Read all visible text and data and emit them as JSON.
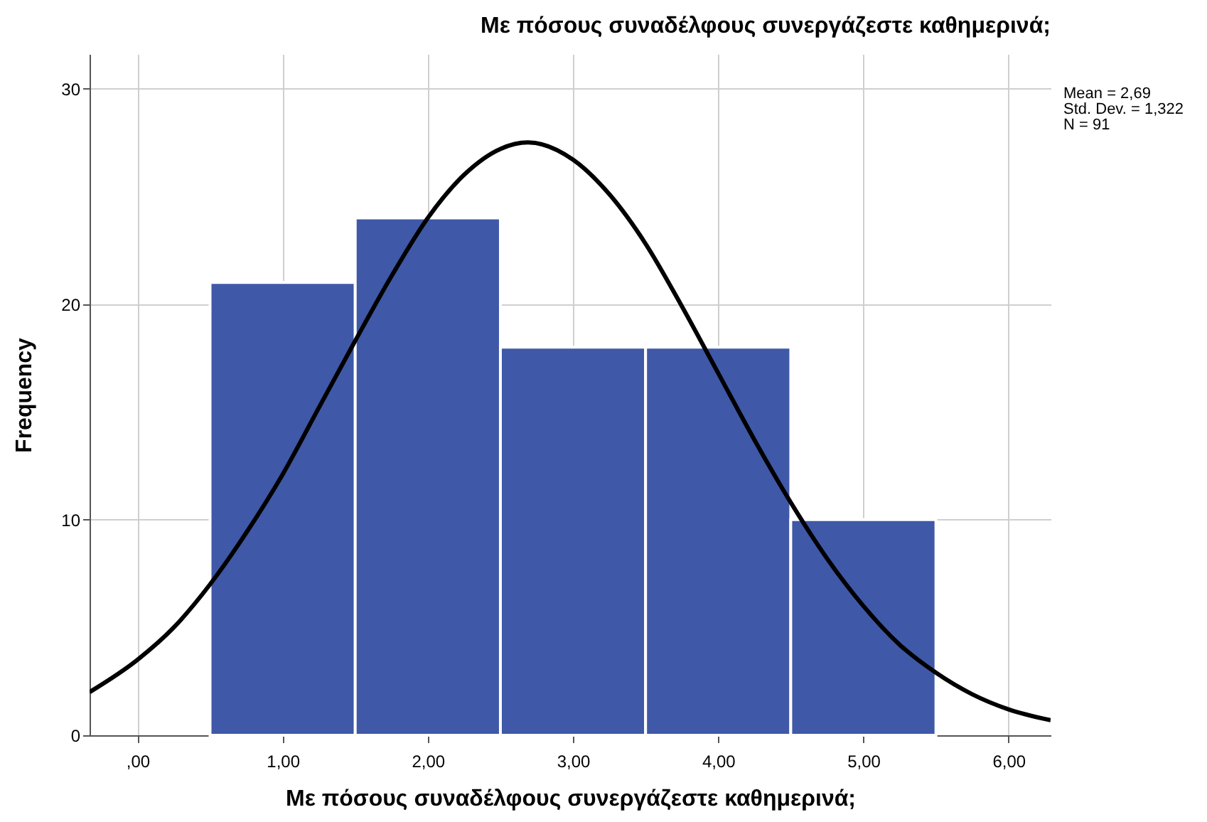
{
  "chart_data": {
    "type": "histogram",
    "title": "Με πόσους συναδέλφους συνεργάζεστε καθημερινά;",
    "xlabel": "Με πόσους συναδέλφους συνεργάζεστε καθημερινά;",
    "ylabel": "Frequency",
    "annotations": [
      "Mean = 2,69",
      "Std. Dev. = 1,322",
      "N = 91"
    ],
    "series": [
      {
        "color": "#3f58a7",
        "bins": [
          0.5,
          1.5,
          2.5,
          3.5,
          4.5,
          5.5
        ],
        "values": [
          21,
          24,
          18,
          18,
          10
        ]
      },
      {
        "type": "line",
        "color": "#000000",
        "x": [
          -0.33,
          0,
          0.25,
          0.5,
          0.75,
          1,
          1.25,
          1.5,
          1.75,
          2,
          2.25,
          2.5,
          2.69,
          3,
          3.25,
          3.5,
          3.75,
          4,
          4.25,
          4.5,
          4.75,
          5,
          5.25,
          5.5,
          5.75,
          6,
          6.29
        ],
        "values": [
          2.0,
          3.5,
          5.0,
          7.0,
          9.4,
          12.1,
          15.2,
          18.3,
          21.3,
          24.0,
          26.0,
          27.2,
          27.5,
          26.7,
          25.1,
          22.8,
          19.9,
          16.8,
          13.7,
          10.8,
          8.2,
          6.0,
          4.2,
          2.9,
          1.9,
          1.2,
          0.7
        ]
      }
    ],
    "xlim": [
      -0.33,
      6.29
    ],
    "xticks": [
      {
        "value": 0,
        "label": ",00"
      },
      {
        "value": 1,
        "label": "1,00"
      },
      {
        "value": 2,
        "label": "2,00"
      },
      {
        "value": 3,
        "label": "3,00"
      },
      {
        "value": 4,
        "label": "4,00"
      },
      {
        "value": 5,
        "label": "5,00"
      },
      {
        "value": 6,
        "label": "6,00"
      }
    ],
    "ylim": [
      0,
      31.6
    ],
    "yticks": [
      0,
      10,
      20,
      30
    ],
    "grid": true
  }
}
